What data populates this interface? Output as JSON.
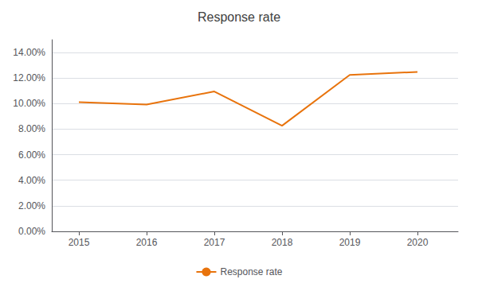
{
  "chart_data": {
    "type": "line",
    "title": "Response rate",
    "x": [
      2015,
      2016,
      2017,
      2018,
      2019,
      2020
    ],
    "series": [
      {
        "name": "Response rate",
        "color": "#E8730C",
        "values": [
          0.1012,
          0.0993,
          0.1095,
          0.0827,
          0.1225,
          0.1248
        ]
      }
    ],
    "xlim": [
      2014.6,
      2020.6
    ],
    "xticks": [
      2015,
      2016,
      2017,
      2018,
      2019,
      2020
    ],
    "ylim": [
      0.0,
      0.15
    ],
    "yticks": [
      {
        "value": 0.0,
        "label": "0.00%"
      },
      {
        "value": 0.02,
        "label": "2.00%"
      },
      {
        "value": 0.04,
        "label": "4.00%"
      },
      {
        "value": 0.06,
        "label": "6.00%"
      },
      {
        "value": 0.08,
        "label": "8.00%"
      },
      {
        "value": 0.1,
        "label": "10.00%"
      },
      {
        "value": 0.12,
        "label": "12.00%"
      },
      {
        "value": 0.14,
        "label": "14.00%"
      }
    ],
    "grid": true,
    "legend": "bottom"
  }
}
